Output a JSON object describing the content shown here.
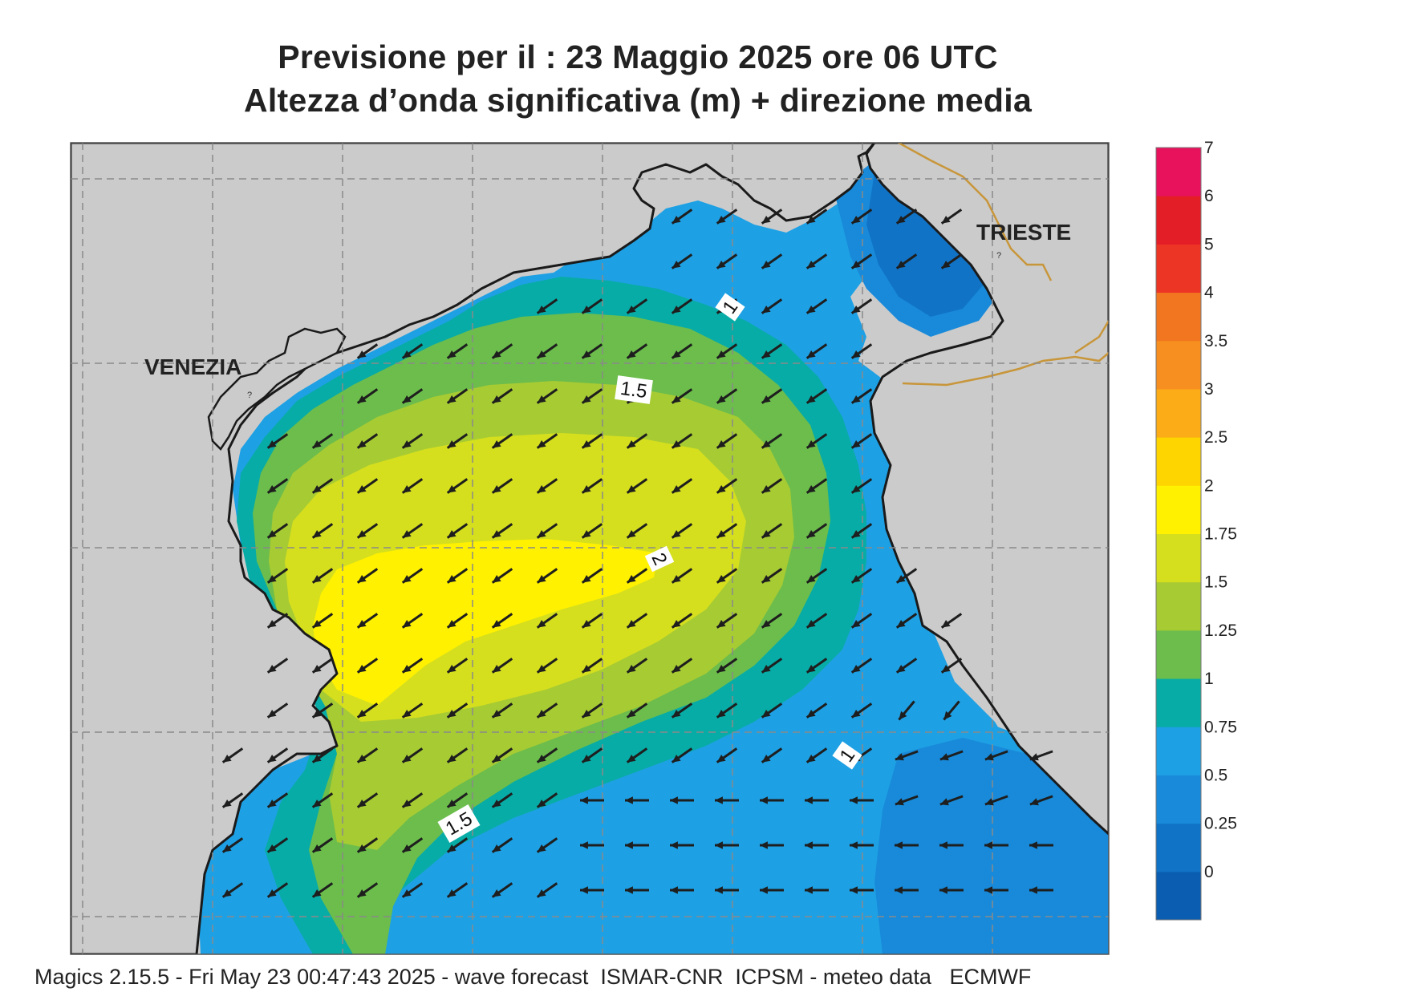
{
  "header": {
    "title_line1": "Previsione per il  :  23   Maggio  2025   ore 06 UTC",
    "title_line2": "Altezza d’onda significativa (m) + direzione media"
  },
  "map": {
    "cities": {
      "venezia": "VENEZIA",
      "trieste": "TRIESTE"
    },
    "contour_labels": [
      "1",
      "1.5",
      "2",
      "1.5",
      "1"
    ],
    "colors": {
      "land": "#cbcbcb",
      "coast": "#1a1a1a",
      "border": "#c8963a",
      "grid": "#8a8a8a",
      "arrow": "#1e1e1e"
    }
  },
  "colorbar": {
    "labels": [
      "7",
      "6",
      "5",
      "4",
      "3.5",
      "3",
      "2.5",
      "2",
      "1.75",
      "1.5",
      "1.25",
      "1",
      "0.75",
      "0.5",
      "0.25",
      "0"
    ],
    "colors": [
      "#0a5db0",
      "#1173c6",
      "#188ad9",
      "#1ea0e4",
      "#08aca6",
      "#6cbd4c",
      "#a7cb33",
      "#d5df1e",
      "#fff100",
      "#ffd500",
      "#fbac16",
      "#f68f1f",
      "#f27620",
      "#ed3526",
      "#e41e26",
      "#e8125c"
    ]
  },
  "footer": {
    "text": "Magics 2.15.5 - Fri May 23 00:47:43 2025 - wave forecast  ISMAR-CNR  ICPSM - meteo data   ECMWF"
  }
}
